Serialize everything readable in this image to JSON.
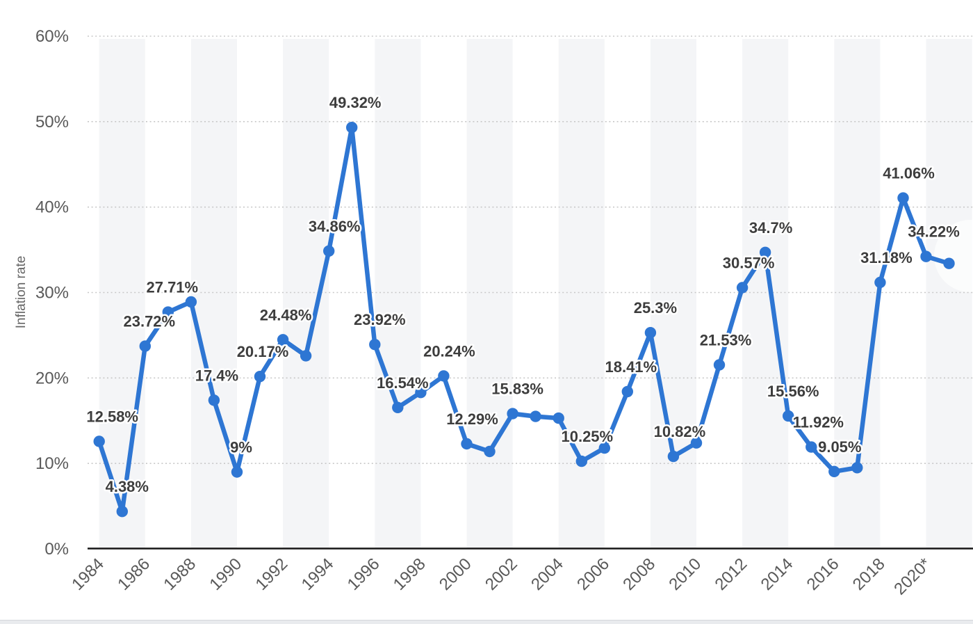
{
  "page": {
    "background_color": "#ffffff"
  },
  "style": {
    "line_color": "#2e76d3",
    "marker_color": "#2e76d3",
    "point_label_color": "#3d3d3d",
    "tick_label_color": "#595959",
    "axis_title_color": "#666666",
    "gridline_color": "#c8c8c8",
    "axis_line_color": "#161616",
    "plot_band_color": "#f4f5f7",
    "footer_bar_color": "#e9ebee"
  },
  "chart_data": {
    "type": "line",
    "title": "",
    "xlabel": "",
    "ylabel": "Inflation rate",
    "ylim": [
      0,
      60
    ],
    "grid": "horizontal-dotted",
    "legend": "none",
    "y_ticks": [
      {
        "value": 0,
        "label": "0%"
      },
      {
        "value": 10,
        "label": "10%"
      },
      {
        "value": 20,
        "label": "20%"
      },
      {
        "value": 30,
        "label": "30%"
      },
      {
        "value": 40,
        "label": "40%"
      },
      {
        "value": 50,
        "label": "50%"
      },
      {
        "value": 60,
        "label": "60%"
      }
    ],
    "x_ticks": [
      {
        "year": 1984,
        "label": "1984"
      },
      {
        "year": 1986,
        "label": "1986"
      },
      {
        "year": 1988,
        "label": "1988"
      },
      {
        "year": 1990,
        "label": "1990"
      },
      {
        "year": 1992,
        "label": "1992"
      },
      {
        "year": 1994,
        "label": "1994"
      },
      {
        "year": 1996,
        "label": "1996"
      },
      {
        "year": 1998,
        "label": "1998"
      },
      {
        "year": 2000,
        "label": "2000"
      },
      {
        "year": 2002,
        "label": "2002"
      },
      {
        "year": 2004,
        "label": "2004"
      },
      {
        "year": 2006,
        "label": "2006"
      },
      {
        "year": 2008,
        "label": "2008"
      },
      {
        "year": 2010,
        "label": "2010"
      },
      {
        "year": 2012,
        "label": "2012"
      },
      {
        "year": 2014,
        "label": "2014"
      },
      {
        "year": 2016,
        "label": "2016"
      },
      {
        "year": 2018,
        "label": "2018"
      },
      {
        "year": 2020,
        "label": "2020*"
      }
    ],
    "plot_band_start_years": [
      1984,
      1988,
      1992,
      1996,
      2000,
      2004,
      2008,
      2012,
      2016,
      2020
    ],
    "plot_band_span_years": 2,
    "series": [
      {
        "name": "Inflation rate",
        "points": [
          {
            "year": 1984,
            "value": 12.58,
            "label": "12.58%",
            "label_dx": 19
          },
          {
            "year": 1985,
            "value": 4.38,
            "label": "4.38%",
            "label_dx": 7
          },
          {
            "year": 1986,
            "value": 23.72,
            "label": "23.72%",
            "label_dx": 6
          },
          {
            "year": 1987,
            "value": 27.71,
            "label": "27.71%",
            "label_dx": 6
          },
          {
            "year": 1988,
            "value": 28.9,
            "label": null,
            "label_dx": 0
          },
          {
            "year": 1989,
            "value": 17.4,
            "label": "17.4%",
            "label_dx": 4
          },
          {
            "year": 1990,
            "value": 9,
            "label": "9%",
            "label_dx": 6
          },
          {
            "year": 1991,
            "value": 20.17,
            "label": "20.17%",
            "label_dx": 4
          },
          {
            "year": 1992,
            "value": 24.48,
            "label": "24.48%",
            "label_dx": 4
          },
          {
            "year": 1993,
            "value": 22.6,
            "label": null,
            "label_dx": 0
          },
          {
            "year": 1994,
            "value": 34.86,
            "label": "34.86%",
            "label_dx": 8
          },
          {
            "year": 1995,
            "value": 49.32,
            "label": "49.32%",
            "label_dx": 5
          },
          {
            "year": 1996,
            "value": 23.92,
            "label": "23.92%",
            "label_dx": 7
          },
          {
            "year": 1997,
            "value": 16.54,
            "label": "16.54%",
            "label_dx": 7
          },
          {
            "year": 1998,
            "value": 18.3,
            "label": null,
            "label_dx": 0
          },
          {
            "year": 1999,
            "value": 20.24,
            "label": "20.24%",
            "label_dx": 8
          },
          {
            "year": 2000,
            "value": 12.29,
            "label": "12.29%",
            "label_dx": 8
          },
          {
            "year": 2001,
            "value": 11.4,
            "label": null,
            "label_dx": 0
          },
          {
            "year": 2002,
            "value": 15.83,
            "label": "15.83%",
            "label_dx": 7
          },
          {
            "year": 2003,
            "value": 15.5,
            "label": null,
            "label_dx": 0
          },
          {
            "year": 2004,
            "value": 15.3,
            "label": null,
            "label_dx": 0
          },
          {
            "year": 2005,
            "value": 10.25,
            "label": "10.25%",
            "label_dx": 8
          },
          {
            "year": 2006,
            "value": 11.8,
            "label": null,
            "label_dx": 0
          },
          {
            "year": 2007,
            "value": 18.41,
            "label": "18.41%",
            "label_dx": 5
          },
          {
            "year": 2008,
            "value": 25.3,
            "label": "25.3%",
            "label_dx": 7
          },
          {
            "year": 2009,
            "value": 10.82,
            "label": "10.82%",
            "label_dx": 9
          },
          {
            "year": 2010,
            "value": 12.4,
            "label": null,
            "label_dx": 0
          },
          {
            "year": 2011,
            "value": 21.53,
            "label": "21.53%",
            "label_dx": 9
          },
          {
            "year": 2012,
            "value": 30.57,
            "label": "30.57%",
            "label_dx": 9
          },
          {
            "year": 2013,
            "value": 34.7,
            "label": "34.7%",
            "label_dx": 8
          },
          {
            "year": 2014,
            "value": 15.56,
            "label": "15.56%",
            "label_dx": 7
          },
          {
            "year": 2015,
            "value": 11.92,
            "label": "11.92%",
            "label_dx": 10
          },
          {
            "year": 2016,
            "value": 9.05,
            "label": "9.05%",
            "label_dx": 8
          },
          {
            "year": 2017,
            "value": 9.5,
            "label": null,
            "label_dx": 0
          },
          {
            "year": 2018,
            "value": 31.18,
            "label": "31.18%",
            "label_dx": 9
          },
          {
            "year": 2019,
            "value": 41.06,
            "label": "41.06%",
            "label_dx": 8
          },
          {
            "year": 2020,
            "value": 34.22,
            "label": "34.22%",
            "label_dx": 11
          },
          {
            "year": 2021,
            "value": 33.4,
            "label": null,
            "label_dx": 0
          }
        ]
      }
    ]
  }
}
